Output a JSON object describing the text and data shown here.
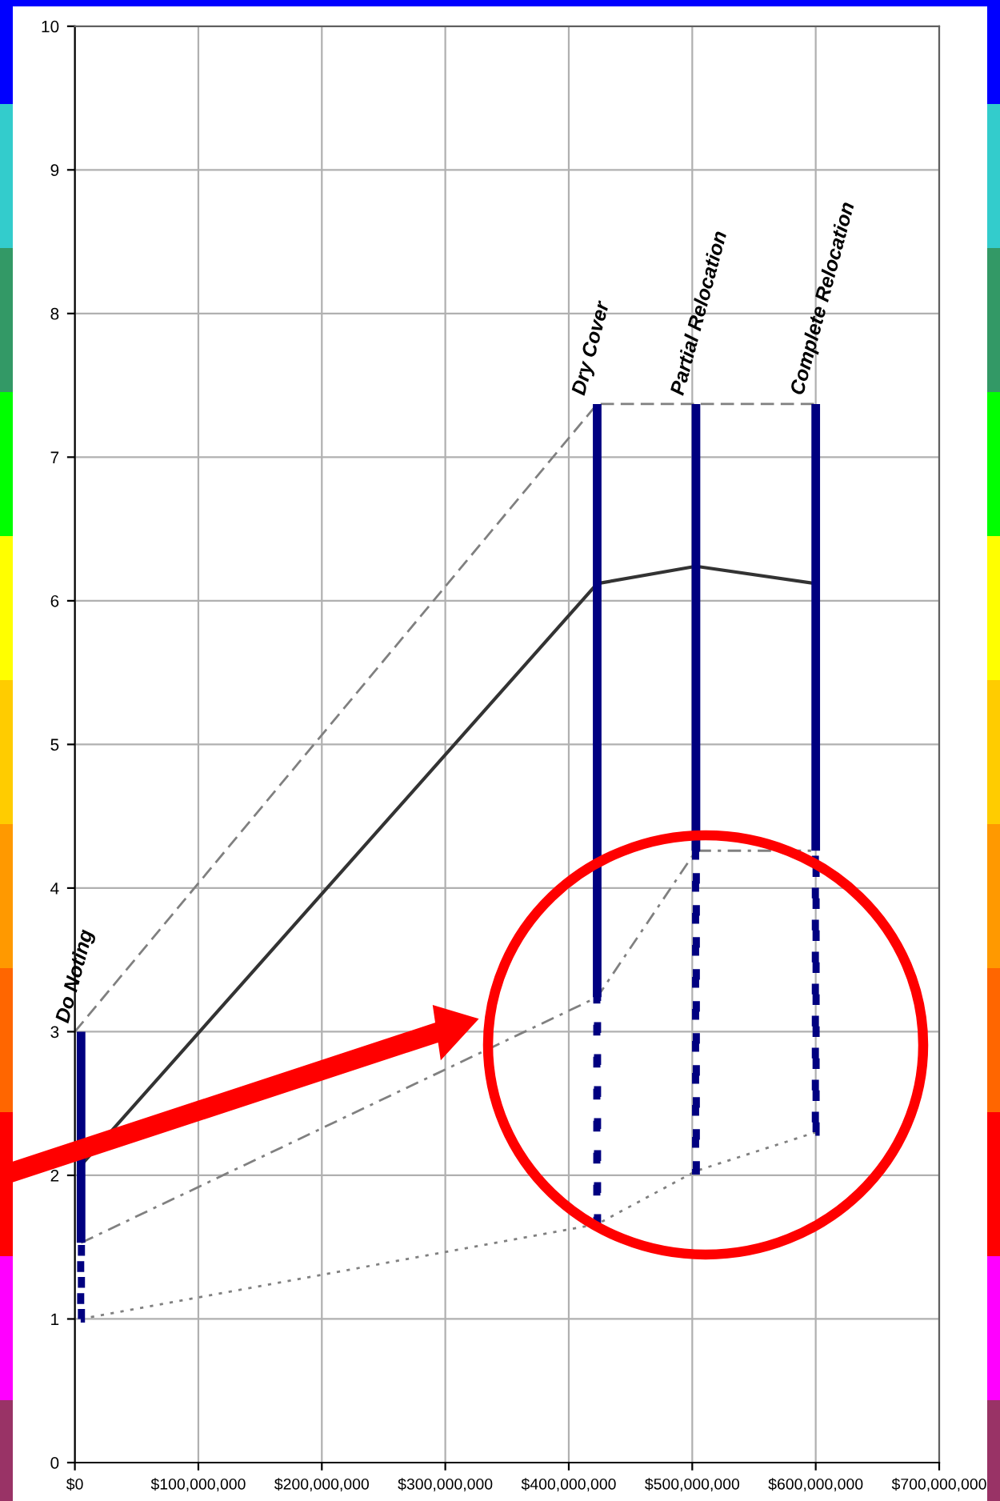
{
  "chart_data": {
    "type": "line",
    "xlim": [
      0,
      700000000
    ],
    "ylim": [
      0,
      10
    ],
    "xticks": [
      {
        "value": 0,
        "label": "$0"
      },
      {
        "value": 100000000,
        "label": "$100,000,000"
      },
      {
        "value": 200000000,
        "label": "$200,000,000"
      },
      {
        "value": 300000000,
        "label": "$300,000,000"
      },
      {
        "value": 400000000,
        "label": "$400,000,000"
      },
      {
        "value": 500000000,
        "label": "$500,000,000"
      },
      {
        "value": 600000000,
        "label": "$600,000,000"
      },
      {
        "value": 700000000,
        "label": "$700,000,000"
      }
    ],
    "yticks": [
      0,
      1,
      2,
      3,
      4,
      5,
      6,
      7,
      8,
      9,
      10
    ],
    "grid": true,
    "legend": false,
    "marker": "none",
    "series": [
      {
        "type": "bar",
        "color": "#000080",
        "line_style": "solid",
        "x": [
          5000000,
          423000000,
          503000000,
          600000000
        ],
        "base": [
          1.53,
          3.24,
          4.26,
          4.26
        ],
        "values": [
          1.47,
          4.13,
          3.11,
          3.11
        ]
      },
      {
        "type": "bar",
        "color": "#000080",
        "line_style": "dotted",
        "x": [
          5000000,
          423000000,
          503000000,
          600000000
        ],
        "base": [
          1.0,
          1.66,
          2.03,
          2.3
        ],
        "values": [
          0.53,
          1.58,
          2.23,
          1.96
        ]
      },
      {
        "color": "#808080",
        "line_style": "dashed",
        "x": [
          0,
          423000000,
          600000000
        ],
        "values": [
          3.0,
          7.37,
          7.37
        ]
      },
      {
        "color": "#333333",
        "line_style": "solid",
        "x": [
          5000000,
          423000000,
          503000000,
          600000000
        ],
        "values": [
          2.07,
          6.12,
          6.24,
          6.12
        ]
      },
      {
        "color": "#808080",
        "line_style": "dashdot",
        "x": [
          5000000,
          423000000,
          503000000,
          600000000
        ],
        "values": [
          1.53,
          3.24,
          4.26,
          4.26
        ]
      },
      {
        "color": "#808080",
        "line_style": "dotted",
        "x": [
          5000000,
          423000000,
          503000000,
          600000000
        ],
        "values": [
          1.0,
          1.66,
          2.03,
          2.3
        ]
      }
    ],
    "annotations": [
      {
        "text": "Do Noting",
        "x": 5000000,
        "y": 3.0
      },
      {
        "text": "Dry Cover",
        "x": 423000000,
        "y": 7.37
      },
      {
        "text": "Partial Relocation",
        "x": 503000000,
        "y": 7.37
      },
      {
        "text": "Complete Relocation",
        "x": 600000000,
        "y": 7.37
      }
    ]
  }
}
